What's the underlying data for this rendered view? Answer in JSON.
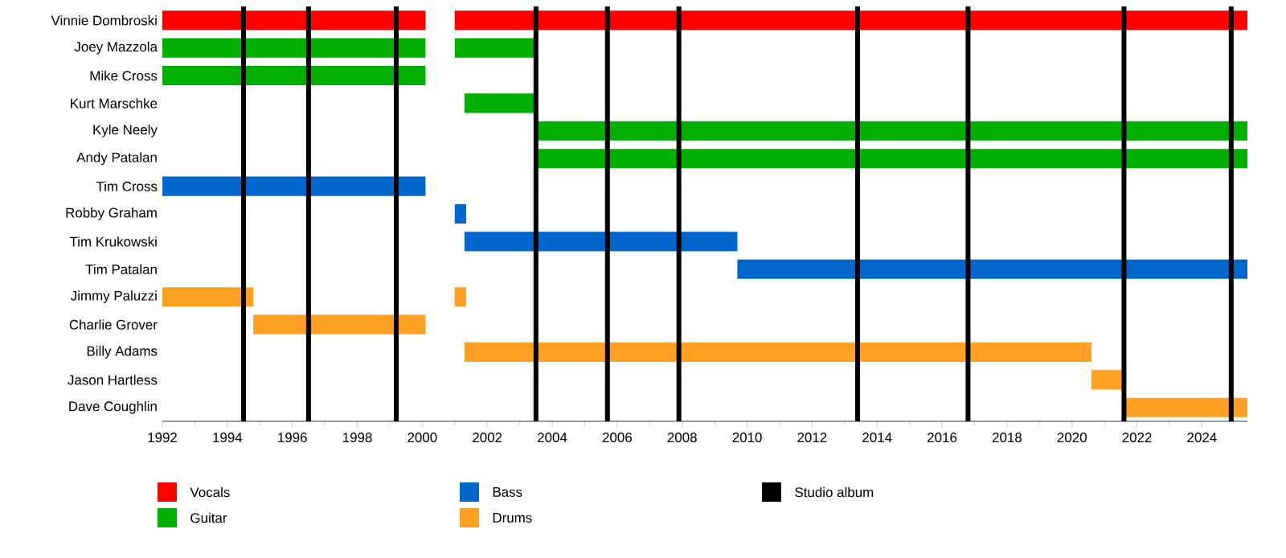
{
  "chart_data": {
    "type": "bar",
    "orientation": "horizontal",
    "categories": [
      "Vinnie Dombroski",
      "Joey Mazzola",
      "Mike Cross",
      "Kurt Marschke",
      "Kyle Neely",
      "Andy Patalan",
      "Tim Cross",
      "Robby Graham",
      "Tim Krukowski",
      "Tim Patalan",
      "Jimmy Paluzzi",
      "Charlie Grover",
      "Billy Adams",
      "Jason Hartless",
      "Dave Coughlin"
    ],
    "series": [
      {
        "name": "Vocals",
        "color": "#ff0000",
        "base": [
          1992,
          null,
          null,
          null,
          null,
          null,
          null,
          null,
          null,
          null,
          null,
          null,
          null,
          null,
          null
        ],
        "values": [
          8.1,
          null,
          null,
          null,
          null,
          null,
          null,
          null,
          null,
          null,
          null,
          null,
          null,
          null,
          null
        ]
      },
      {
        "name": "Guitar",
        "color": "#00b000",
        "base": [
          null,
          1992,
          1992,
          2001.3,
          2003.5,
          2003.5,
          null,
          null,
          null,
          null,
          null,
          null,
          null,
          null,
          null
        ],
        "values": [
          null,
          8.1,
          8.1,
          2.2,
          21.9,
          21.9,
          null,
          null,
          null,
          null,
          null,
          null,
          null,
          null,
          null
        ]
      },
      {
        "name": "Bass",
        "color": "#0066cc",
        "base": [
          null,
          null,
          null,
          null,
          null,
          null,
          1992,
          2001.0,
          2001.3,
          2009.7,
          null,
          null,
          null,
          null,
          null
        ],
        "values": [
          null,
          null,
          null,
          null,
          null,
          null,
          8.1,
          0.35,
          8.4,
          15.7,
          null,
          null,
          null,
          null,
          null
        ]
      },
      {
        "name": "Drums",
        "color": "#ffa023",
        "base": [
          null,
          null,
          null,
          null,
          null,
          null,
          null,
          null,
          null,
          null,
          1992,
          1994.8,
          2001.3,
          2020.6,
          2021.6
        ],
        "values": [
          null,
          null,
          null,
          null,
          null,
          null,
          null,
          null,
          null,
          null,
          2.8,
          5.3,
          19.3,
          1.0,
          3.8
        ]
      },
      {
        "colors": [
          "#ff0000",
          "#00b000",
          null,
          null,
          null,
          null,
          null,
          null,
          null,
          null,
          "#ffa023",
          null,
          null,
          null,
          null
        ],
        "base": [
          2001.0,
          2001.0,
          null,
          null,
          null,
          null,
          null,
          null,
          null,
          null,
          2001.0,
          null,
          null,
          null,
          null
        ],
        "values": [
          24.4,
          2.5,
          null,
          null,
          null,
          null,
          null,
          null,
          null,
          null,
          0.35,
          null,
          null,
          null,
          null
        ]
      }
    ],
    "xlim": [
      1992,
      2025.4
    ],
    "xticks": [
      1992,
      1994,
      1996,
      1998,
      2000,
      2002,
      2004,
      2006,
      2008,
      2010,
      2012,
      2014,
      2016,
      2018,
      2020,
      2022,
      2024
    ],
    "ref_lines": [
      {
        "axis": "x",
        "value": 1994.5,
        "label": "Studio album",
        "color": "#000000"
      },
      {
        "axis": "x",
        "value": 1996.5,
        "color": "#000000"
      },
      {
        "axis": "x",
        "value": 1999.2,
        "color": "#000000"
      },
      {
        "axis": "x",
        "value": 2003.5,
        "color": "#000000"
      },
      {
        "axis": "x",
        "value": 2005.7,
        "color": "#000000"
      },
      {
        "axis": "x",
        "value": 2007.9,
        "color": "#000000"
      },
      {
        "axis": "x",
        "value": 2013.4,
        "color": "#000000"
      },
      {
        "axis": "x",
        "value": 2016.8,
        "color": "#000000"
      },
      {
        "axis": "x",
        "value": 2021.6,
        "color": "#000000"
      },
      {
        "axis": "x",
        "value": 2024.9,
        "color": "#000000"
      }
    ],
    "legend": "bottom"
  }
}
